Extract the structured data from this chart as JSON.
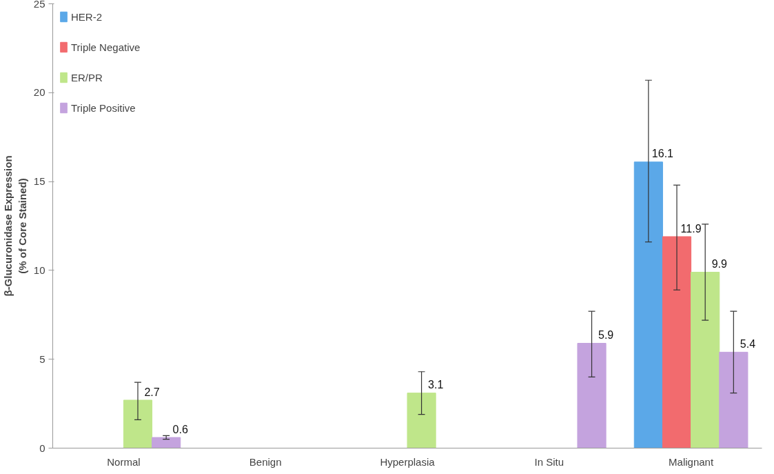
{
  "chart_data": {
    "type": "bar",
    "ylabel": "β-Glucuronidase Expression\n(% of Core Stained)",
    "categories": [
      "Normal",
      "Benign",
      "Hyperplasia",
      "In Situ",
      "Malignant"
    ],
    "series": [
      {
        "name": "HER-2",
        "color": "#5ba8e8",
        "values": [
          0,
          0,
          0,
          0,
          16.1
        ],
        "errors": [
          null,
          null,
          null,
          null,
          [
            11.6,
            20.7
          ]
        ],
        "value_labels": [
          null,
          null,
          null,
          null,
          "16.1"
        ]
      },
      {
        "name": "Triple Negative",
        "color": "#f26b6e",
        "values": [
          0,
          0,
          0,
          0,
          11.9
        ],
        "errors": [
          null,
          null,
          null,
          null,
          [
            8.9,
            14.8
          ]
        ],
        "value_labels": [
          null,
          null,
          null,
          null,
          "11.9"
        ]
      },
      {
        "name": "ER/PR",
        "color": "#bfe68a",
        "values": [
          2.7,
          0,
          3.1,
          0,
          9.9
        ],
        "errors": [
          [
            1.6,
            3.7
          ],
          null,
          [
            1.9,
            4.3
          ],
          null,
          [
            7.2,
            12.6
          ]
        ],
        "value_labels": [
          "2.7",
          null,
          "3.1",
          null,
          "9.9"
        ]
      },
      {
        "name": "Triple Positive",
        "color": "#c4a3de",
        "values": [
          0.6,
          0,
          0,
          5.9,
          5.4
        ],
        "errors": [
          [
            0.5,
            0.7
          ],
          null,
          null,
          [
            4.0,
            7.7
          ],
          [
            3.1,
            7.7
          ]
        ],
        "value_labels": [
          "0.6",
          null,
          null,
          "5.9",
          "5.4"
        ]
      }
    ],
    "ylim": [
      0,
      25
    ],
    "yticks": [
      0,
      5,
      10,
      15,
      20,
      25
    ],
    "grid": false,
    "legend": "top left"
  }
}
